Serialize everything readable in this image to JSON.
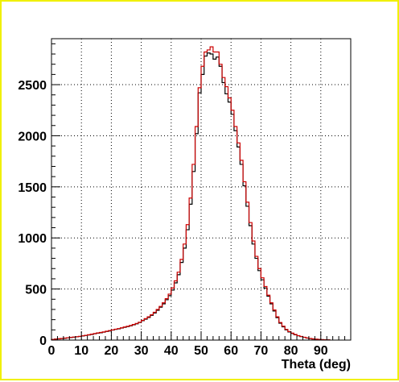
{
  "chart_data": {
    "type": "line",
    "title": "",
    "xlabel": "Theta (deg)",
    "ylabel": "",
    "xlim": [
      0,
      100
    ],
    "ylim": [
      0,
      2950
    ],
    "x_ticks": [
      "0",
      "10",
      "20",
      "30",
      "40",
      "50",
      "60",
      "70",
      "80",
      "90"
    ],
    "y_ticks": [
      "0",
      "500",
      "1000",
      "1500",
      "2000",
      "2500"
    ],
    "grid": true,
    "bin_width": 1,
    "series": [
      {
        "color": "#000000",
        "bin_centers": [
          0.5,
          1.5,
          2.5,
          3.5,
          4.5,
          5.5,
          6.5,
          7.5,
          8.5,
          9.5,
          10.5,
          11.5,
          12.5,
          13.5,
          14.5,
          15.5,
          16.5,
          17.5,
          18.5,
          19.5,
          20.5,
          21.5,
          22.5,
          23.5,
          24.5,
          25.5,
          26.5,
          27.5,
          28.5,
          29.5,
          30.5,
          31.5,
          32.5,
          33.5,
          34.5,
          35.5,
          36.5,
          37.5,
          38.5,
          39.5,
          40.5,
          41.5,
          42.5,
          43.5,
          44.5,
          45.5,
          46.5,
          47.5,
          48.5,
          49.5,
          50.5,
          51.5,
          52.5,
          53.5,
          54.5,
          55.5,
          56.5,
          57.5,
          58.5,
          59.5,
          60.5,
          61.5,
          62.5,
          63.5,
          64.5,
          65.5,
          66.5,
          67.5,
          68.5,
          69.5,
          70.5,
          71.5,
          72.5,
          73.5,
          74.5,
          75.5,
          76.5,
          77.5,
          78.5,
          79.5,
          80.5,
          81.5,
          82.5,
          83.5,
          84.5,
          85.5,
          86.5,
          87.5,
          88.5,
          89.5,
          90.5,
          91.5,
          92.5
        ],
        "values": [
          5,
          10,
          12,
          15,
          18,
          22,
          25,
          28,
          32,
          35,
          40,
          45,
          50,
          55,
          62,
          68,
          72,
          78,
          85,
          90,
          98,
          105,
          110,
          118,
          125,
          132,
          140,
          150,
          160,
          172,
          190,
          205,
          222,
          242,
          265,
          292,
          322,
          355,
          395,
          435,
          490,
          560,
          640,
          760,
          900,
          1080,
          1330,
          1650,
          2020,
          2420,
          2600,
          2780,
          2810,
          2800,
          2750,
          2770,
          2680,
          2520,
          2410,
          2330,
          2210,
          2050,
          1890,
          1720,
          1510,
          1310,
          1120,
          940,
          800,
          680,
          590,
          510,
          430,
          355,
          285,
          220,
          165,
          130,
          100,
          80,
          65,
          52,
          42,
          34,
          27,
          20,
          15,
          11,
          8,
          6,
          4,
          3,
          2
        ]
      },
      {
        "color": "#cc0000",
        "bin_centers": [
          0.5,
          1.5,
          2.5,
          3.5,
          4.5,
          5.5,
          6.5,
          7.5,
          8.5,
          9.5,
          10.5,
          11.5,
          12.5,
          13.5,
          14.5,
          15.5,
          16.5,
          17.5,
          18.5,
          19.5,
          20.5,
          21.5,
          22.5,
          23.5,
          24.5,
          25.5,
          26.5,
          27.5,
          28.5,
          29.5,
          30.5,
          31.5,
          32.5,
          33.5,
          34.5,
          35.5,
          36.5,
          37.5,
          38.5,
          39.5,
          40.5,
          41.5,
          42.5,
          43.5,
          44.5,
          45.5,
          46.5,
          47.5,
          48.5,
          49.5,
          50.5,
          51.5,
          52.5,
          53.5,
          54.5,
          55.5,
          56.5,
          57.5,
          58.5,
          59.5,
          60.5,
          61.5,
          62.5,
          63.5,
          64.5,
          65.5,
          66.5,
          67.5,
          68.5,
          69.5,
          70.5,
          71.5,
          72.5,
          73.5,
          74.5,
          75.5,
          76.5,
          77.5,
          78.5,
          79.5,
          80.5,
          81.5,
          82.5,
          83.5,
          84.5,
          85.5,
          86.5,
          87.5,
          88.5,
          89.5,
          90.5,
          91.5,
          92.5
        ],
        "values": [
          6,
          9,
          13,
          16,
          20,
          23,
          27,
          30,
          33,
          37,
          42,
          47,
          52,
          58,
          64,
          70,
          75,
          80,
          87,
          93,
          100,
          107,
          113,
          120,
          128,
          135,
          143,
          153,
          163,
          175,
          193,
          210,
          228,
          248,
          272,
          300,
          330,
          365,
          405,
          450,
          510,
          580,
          665,
          790,
          940,
          1130,
          1390,
          1720,
          2090,
          2470,
          2680,
          2820,
          2840,
          2870,
          2820,
          2820,
          2700,
          2570,
          2480,
          2370,
          2250,
          2090,
          1930,
          1760,
          1550,
          1350,
          1150,
          970,
          820,
          700,
          610,
          525,
          440,
          365,
          295,
          228,
          172,
          136,
          105,
          84,
          68,
          55,
          44,
          36,
          28,
          21,
          16,
          12,
          9,
          6,
          4,
          3,
          2
        ]
      }
    ]
  }
}
